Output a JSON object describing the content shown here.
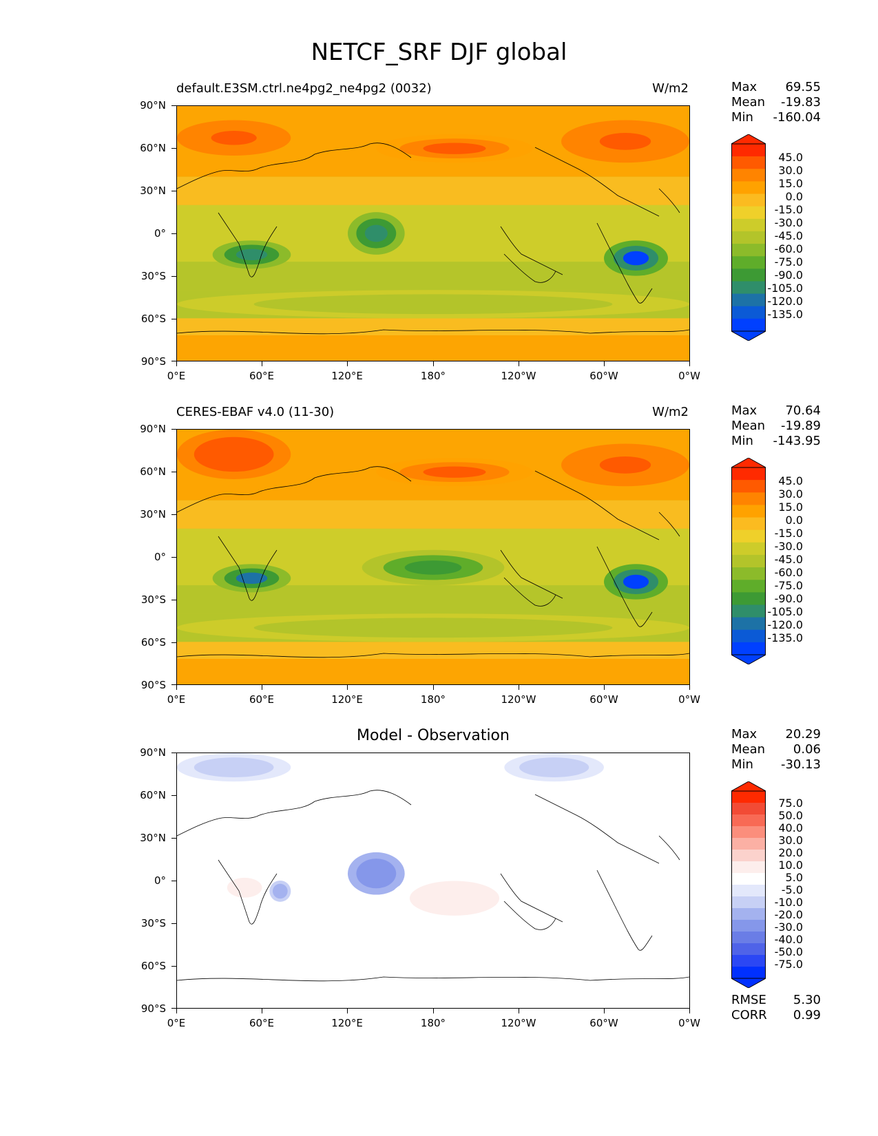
{
  "figure": {
    "title": "NETCF_SRF DJF global"
  },
  "axes": {
    "x_ticks": [
      "0°E",
      "60°E",
      "120°E",
      "180°",
      "120°W",
      "60°W",
      "0°W"
    ],
    "y_ticks": [
      "90°N",
      "60°N",
      "30°N",
      "0°",
      "30°S",
      "60°S",
      "90°S"
    ]
  },
  "panels": [
    {
      "title": "default.E3SM.ctrl.ne4pg2_ne4pg2 (0032)",
      "units": "W/m2",
      "stats": [
        {
          "label": "Max",
          "value": "69.55"
        },
        {
          "label": "Mean",
          "value": "-19.83"
        },
        {
          "label": "Min",
          "value": "-160.04"
        }
      ],
      "colorbar_labels": [
        "45.0",
        "30.0",
        "15.0",
        "0.0",
        "-15.0",
        "-30.0",
        "-45.0",
        "-60.0",
        "-75.0",
        "-90.0",
        "-105.0",
        "-120.0",
        "-135.0"
      ]
    },
    {
      "title": "CERES-EBAF v4.0 (11-30)",
      "units": "W/m2",
      "stats": [
        {
          "label": "Max",
          "value": "70.64"
        },
        {
          "label": "Mean",
          "value": "-19.89"
        },
        {
          "label": "Min",
          "value": "-143.95"
        }
      ],
      "colorbar_labels": [
        "45.0",
        "30.0",
        "15.0",
        "0.0",
        "-15.0",
        "-30.0",
        "-45.0",
        "-60.0",
        "-75.0",
        "-90.0",
        "-105.0",
        "-120.0",
        "-135.0"
      ]
    },
    {
      "title": "Model - Observation",
      "stats": [
        {
          "label": "Max",
          "value": "20.29"
        },
        {
          "label": "Mean",
          "value": "0.06"
        },
        {
          "label": "Min",
          "value": "-30.13"
        }
      ],
      "extra_stats": [
        {
          "label": "RMSE",
          "value": "5.30"
        },
        {
          "label": "CORR",
          "value": "0.99"
        }
      ],
      "colorbar_labels": [
        "75.0",
        "50.0",
        "40.0",
        "30.0",
        "20.0",
        "10.0",
        "5.0",
        "-5.0",
        "-10.0",
        "-20.0",
        "-30.0",
        "-40.0",
        "-50.0",
        "-75.0"
      ]
    }
  ],
  "colors": {
    "field_cmap": [
      "#ff2a00",
      "#ff5a00",
      "#ff8400",
      "#ffa200",
      "#fbbb20",
      "#efd02a",
      "#cdcc2a",
      "#b3c42a",
      "#8cbb2a",
      "#5fad2a",
      "#3d9a34",
      "#2f8e6a",
      "#1d72a6",
      "#0b5ad6",
      "#0040ff"
    ],
    "diff_cmap": [
      "#ff2a00",
      "#f24b35",
      "#f86a55",
      "#fb8e7c",
      "#fbb0a4",
      "#fbd2cc",
      "#fdeeec",
      "#ffffff",
      "#e3e8fb",
      "#c7d0f5",
      "#a4b2ef",
      "#8597ea",
      "#6a7de6",
      "#4f63e8",
      "#2b47f4",
      "#0030ff"
    ]
  },
  "chart_data": [
    {
      "type": "heatmap",
      "title": "default.E3SM.ctrl.ne4pg2_ne4pg2 (0032)",
      "units": "W/m2",
      "xlim": [
        0,
        360
      ],
      "ylim": [
        -90,
        90
      ],
      "levels": [
        -135,
        -120,
        -105,
        -90,
        -75,
        -60,
        -45,
        -30,
        -15,
        0,
        15,
        30,
        45
      ],
      "stats": {
        "max": 69.55,
        "mean": -19.83,
        "min": -160.04
      },
      "features": [
        {
          "name": "nh_high_lat_max",
          "lon": [
            0,
            80
          ],
          "lat": [
            55,
            80
          ],
          "value": 55
        },
        {
          "name": "nh_high_lat_max_2",
          "lon": [
            270,
            360
          ],
          "lat": [
            50,
            80
          ],
          "value": 55
        },
        {
          "name": "north_pacific_band",
          "lon": [
            140,
            250
          ],
          "lat": [
            50,
            70
          ],
          "value": 50
        },
        {
          "name": "southern_africa_min",
          "lon": [
            25,
            80
          ],
          "lat": [
            -25,
            -5
          ],
          "value": -100
        },
        {
          "name": "maritime_continent_min",
          "lon": [
            120,
            160
          ],
          "lat": [
            -15,
            15
          ],
          "value": -100
        },
        {
          "name": "south_america_min",
          "lon": [
            300,
            345
          ],
          "lat": [
            -30,
            -5
          ],
          "value": -135
        },
        {
          "name": "southern_ocean_band",
          "lon": [
            0,
            360
          ],
          "lat": [
            -60,
            -40
          ],
          "value": -40
        }
      ]
    },
    {
      "type": "heatmap",
      "title": "CERES-EBAF v4.0 (11-30)",
      "units": "W/m2",
      "xlim": [
        0,
        360
      ],
      "ylim": [
        -90,
        90
      ],
      "levels": [
        -135,
        -120,
        -105,
        -90,
        -75,
        -60,
        -45,
        -30,
        -15,
        0,
        15,
        30,
        45
      ],
      "stats": {
        "max": 70.64,
        "mean": -19.89,
        "min": -143.95
      },
      "features": [
        {
          "name": "nh_high_lat_max",
          "lon": [
            0,
            80
          ],
          "lat": [
            55,
            90
          ],
          "value": 60
        },
        {
          "name": "nh_high_lat_max_2",
          "lon": [
            270,
            360
          ],
          "lat": [
            50,
            80
          ],
          "value": 55
        },
        {
          "name": "north_pacific_band",
          "lon": [
            140,
            250
          ],
          "lat": [
            50,
            70
          ],
          "value": 50
        },
        {
          "name": "southern_africa_min",
          "lon": [
            25,
            80
          ],
          "lat": [
            -25,
            -5
          ],
          "value": -105
        },
        {
          "name": "maritime_continent_min",
          "lon": [
            130,
            230
          ],
          "lat": [
            -20,
            5
          ],
          "value": -80
        },
        {
          "name": "south_america_min",
          "lon": [
            300,
            345
          ],
          "lat": [
            -30,
            -5
          ],
          "value": -135
        },
        {
          "name": "southern_ocean_band",
          "lon": [
            0,
            360
          ],
          "lat": [
            -60,
            -40
          ],
          "value": -40
        }
      ]
    },
    {
      "type": "heatmap",
      "title": "Model - Observation",
      "xlim": [
        0,
        360
      ],
      "ylim": [
        -90,
        90
      ],
      "levels": [
        -75,
        -50,
        -40,
        -30,
        -20,
        -10,
        -5,
        5,
        10,
        20,
        30,
        40,
        50,
        75
      ],
      "stats": {
        "max": 20.29,
        "mean": 0.06,
        "min": -30.13,
        "rmse": 5.3,
        "corr": 0.99
      },
      "features": [
        {
          "name": "maritime_continent_neg",
          "lon": [
            120,
            160
          ],
          "lat": [
            -10,
            20
          ],
          "value": -25
        },
        {
          "name": "pacific_pos",
          "lon": [
            150,
            240
          ],
          "lat": [
            -30,
            5
          ],
          "value": 12
        },
        {
          "name": "africa_pos",
          "lon": [
            30,
            65
          ],
          "lat": [
            -15,
            5
          ],
          "value": 12
        },
        {
          "name": "indian_neg",
          "lon": [
            65,
            80
          ],
          "lat": [
            -15,
            0
          ],
          "value": -15
        },
        {
          "name": "arctic_neg",
          "lon": [
            0,
            80
          ],
          "lat": [
            70,
            90
          ],
          "value": -8
        },
        {
          "name": "north_pacific_neg",
          "lon": [
            230,
            300
          ],
          "lat": [
            70,
            90
          ],
          "value": -8
        }
      ]
    }
  ]
}
